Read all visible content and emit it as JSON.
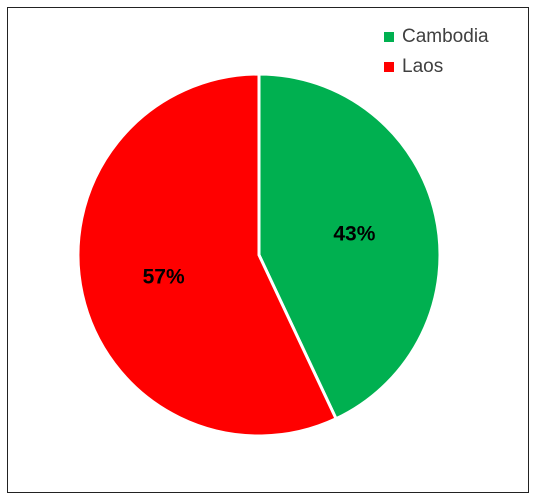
{
  "chart_data": {
    "type": "pie",
    "title": "",
    "categories": [
      "Cambodia",
      "Laos"
    ],
    "values": [
      43,
      57
    ],
    "labels": [
      "43%",
      "57%"
    ],
    "colors": [
      "#00b050",
      "#ff0000"
    ],
    "legend_position": "top-right",
    "start_angle_deg": 0,
    "direction": "clockwise"
  }
}
